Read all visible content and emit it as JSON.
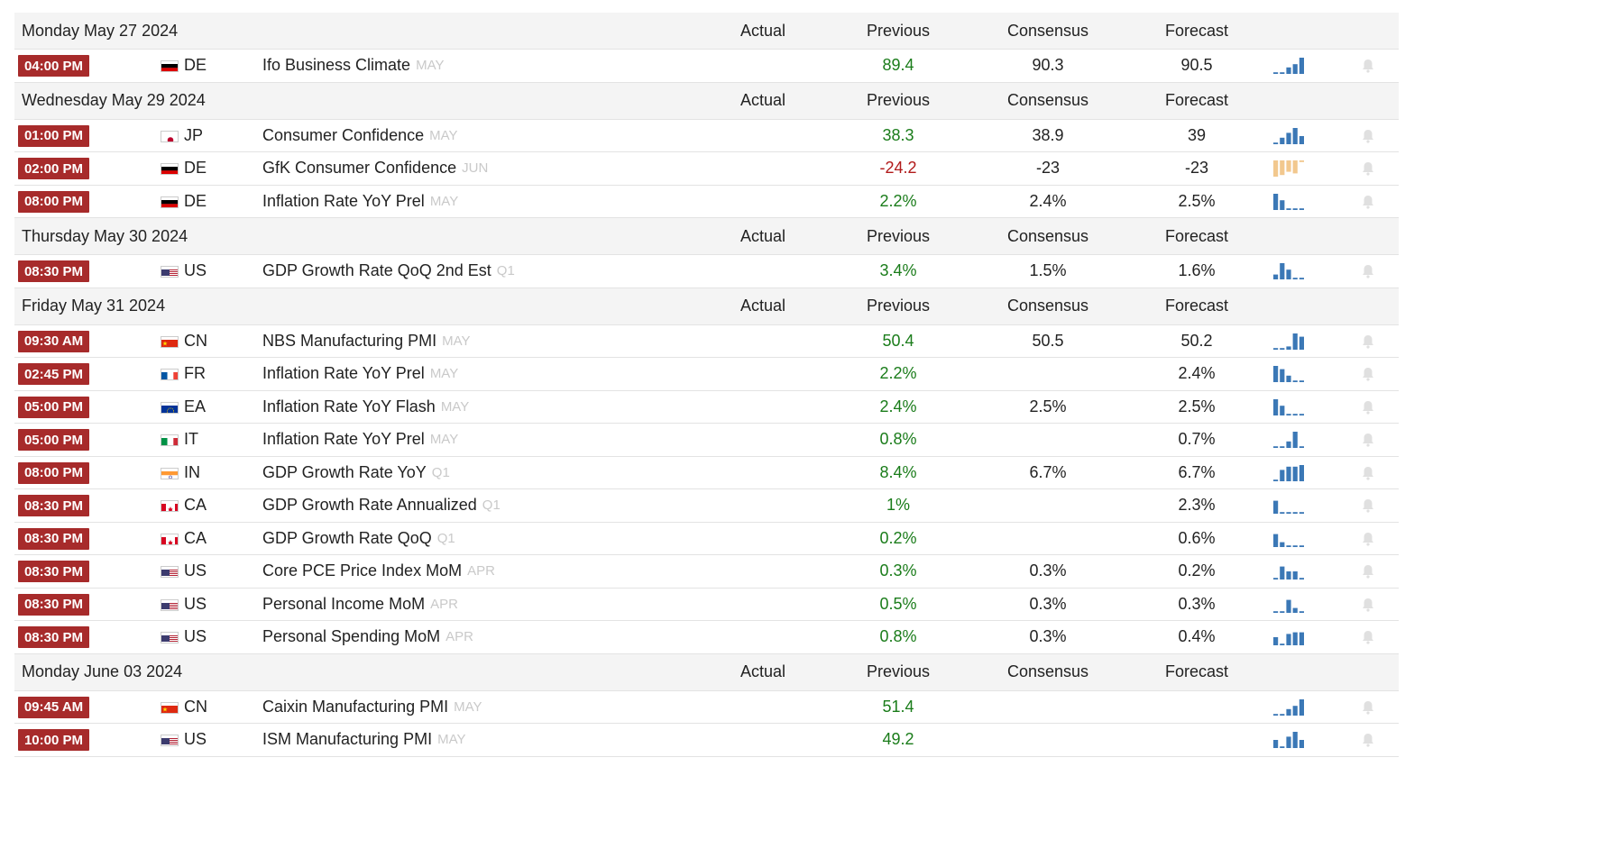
{
  "columns": {
    "actual": "Actual",
    "previous": "Previous",
    "consensus": "Consensus",
    "forecast": "Forecast"
  },
  "colors": {
    "time_badge": "#a72b2b",
    "positive": "#1a7c1a",
    "negative": "#b11a1a",
    "spark_blue": "#3b78b6",
    "spark_orange": "#f2c88e",
    "reference": "#c9c9c9"
  },
  "days": [
    {
      "date": "Monday May 27 2024",
      "events": [
        {
          "time": "04:00 PM",
          "country": "DE",
          "flag": "de",
          "name": "Ifo Business Climate",
          "ref": "MAY",
          "actual": "",
          "previous": "89.4",
          "prev_sign": "pos",
          "consensus": "90.3",
          "forecast": "90.5",
          "spark": [
            0.1,
            0.1,
            0.4,
            0.6,
            1.0
          ],
          "spark_color": "blue",
          "spark_icon": "sparkline-chart-icon",
          "bell_icon": "bell-icon"
        }
      ]
    },
    {
      "date": "Wednesday May 29 2024",
      "events": [
        {
          "time": "01:00 PM",
          "country": "JP",
          "flag": "jp",
          "name": "Consumer Confidence",
          "ref": "MAY",
          "actual": "",
          "previous": "38.3",
          "prev_sign": "pos",
          "consensus": "38.9",
          "forecast": "39",
          "spark": [
            0.1,
            0.4,
            0.7,
            1.0,
            0.5
          ],
          "spark_color": "blue",
          "spark_icon": "sparkline-chart-icon",
          "bell_icon": "bell-icon"
        },
        {
          "time": "02:00 PM",
          "country": "DE",
          "flag": "de",
          "name": "GfK Consumer Confidence",
          "ref": "JUN",
          "actual": "",
          "previous": "-24.2",
          "prev_sign": "neg",
          "consensus": "-23",
          "forecast": "-23",
          "spark": [
            1.0,
            0.9,
            0.7,
            0.8,
            0.1
          ],
          "spark_color": "orange",
          "spark_icon": "sparkline-chart-icon",
          "bell_icon": "bell-icon"
        },
        {
          "time": "08:00 PM",
          "country": "DE",
          "flag": "de",
          "name": "Inflation Rate YoY Prel",
          "ref": "MAY",
          "actual": "",
          "previous": "2.2%",
          "prev_sign": "pos",
          "consensus": "2.4%",
          "forecast": "2.5%",
          "spark": [
            1.0,
            0.6,
            0.1,
            0.1,
            0.1
          ],
          "spark_color": "blue",
          "spark_icon": "sparkline-chart-icon",
          "bell_icon": "bell-icon"
        }
      ]
    },
    {
      "date": "Thursday May 30 2024",
      "events": [
        {
          "time": "08:30 PM",
          "country": "US",
          "flag": "us",
          "name": "GDP Growth Rate QoQ 2nd Est",
          "ref": "Q1",
          "actual": "",
          "previous": "3.4%",
          "prev_sign": "pos",
          "consensus": "1.5%",
          "forecast": "1.6%",
          "spark": [
            0.3,
            1.0,
            0.6,
            0.1,
            0.1
          ],
          "spark_color": "blue",
          "spark_icon": "sparkline-chart-icon",
          "bell_icon": "bell-icon"
        }
      ]
    },
    {
      "date": "Friday May 31 2024",
      "events": [
        {
          "time": "09:30 AM",
          "country": "CN",
          "flag": "cn",
          "name": "NBS Manufacturing PMI",
          "ref": "MAY",
          "actual": "",
          "previous": "50.4",
          "prev_sign": "pos",
          "consensus": "50.5",
          "forecast": "50.2",
          "spark": [
            0.1,
            0.1,
            0.2,
            1.0,
            0.8
          ],
          "spark_color": "blue",
          "spark_icon": "sparkline-chart-icon",
          "bell_icon": "bell-icon"
        },
        {
          "time": "02:45 PM",
          "country": "FR",
          "flag": "fr",
          "name": "Inflation Rate YoY Prel",
          "ref": "MAY",
          "actual": "",
          "previous": "2.2%",
          "prev_sign": "pos",
          "consensus": "",
          "forecast": "2.4%",
          "spark": [
            1.0,
            0.8,
            0.4,
            0.1,
            0.1
          ],
          "spark_color": "blue",
          "spark_icon": "sparkline-chart-icon",
          "bell_icon": "bell-icon"
        },
        {
          "time": "05:00 PM",
          "country": "EA",
          "flag": "eu",
          "name": "Inflation Rate YoY Flash",
          "ref": "MAY",
          "actual": "",
          "previous": "2.4%",
          "prev_sign": "pos",
          "consensus": "2.5%",
          "forecast": "2.5%",
          "spark": [
            1.0,
            0.6,
            0.1,
            0.1,
            0.1
          ],
          "spark_color": "blue",
          "spark_icon": "sparkline-chart-icon",
          "bell_icon": "bell-icon"
        },
        {
          "time": "05:00 PM",
          "country": "IT",
          "flag": "it",
          "name": "Inflation Rate YoY Prel",
          "ref": "MAY",
          "actual": "",
          "previous": "0.8%",
          "prev_sign": "pos",
          "consensus": "",
          "forecast": "0.7%",
          "spark": [
            0.1,
            0.1,
            0.4,
            1.0,
            0.1
          ],
          "spark_color": "blue",
          "spark_icon": "sparkline-chart-icon",
          "bell_icon": "bell-icon"
        },
        {
          "time": "08:00 PM",
          "country": "IN",
          "flag": "in",
          "name": "GDP Growth Rate YoY",
          "ref": "Q1",
          "actual": "",
          "previous": "8.4%",
          "prev_sign": "pos",
          "consensus": "6.7%",
          "forecast": "6.7%",
          "spark": [
            0.1,
            0.7,
            0.9,
            0.9,
            1.0
          ],
          "spark_color": "blue",
          "spark_icon": "sparkline-chart-icon",
          "bell_icon": "bell-icon"
        },
        {
          "time": "08:30 PM",
          "country": "CA",
          "flag": "ca",
          "name": "GDP Growth Rate Annualized",
          "ref": "Q1",
          "actual": "",
          "previous": "1%",
          "prev_sign": "pos",
          "consensus": "",
          "forecast": "2.3%",
          "spark": [
            0.8,
            0.1,
            0.1,
            0.1,
            0.1
          ],
          "spark_color": "blue",
          "spark_icon": "sparkline-chart-icon",
          "bell_icon": "bell-icon"
        },
        {
          "time": "08:30 PM",
          "country": "CA",
          "flag": "ca",
          "name": "GDP Growth Rate QoQ",
          "ref": "Q1",
          "actual": "",
          "previous": "0.2%",
          "prev_sign": "pos",
          "consensus": "",
          "forecast": "0.6%",
          "spark": [
            0.8,
            0.3,
            0.1,
            0.1,
            0.1
          ],
          "spark_color": "blue",
          "spark_icon": "sparkline-chart-icon",
          "bell_icon": "bell-icon"
        },
        {
          "time": "08:30 PM",
          "country": "US",
          "flag": "us",
          "name": "Core PCE Price Index MoM",
          "ref": "APR",
          "actual": "",
          "previous": "0.3%",
          "prev_sign": "pos",
          "consensus": "0.3%",
          "forecast": "0.2%",
          "spark": [
            0.1,
            0.8,
            0.5,
            0.5,
            0.1
          ],
          "spark_color": "blue",
          "spark_icon": "sparkline-chart-icon",
          "bell_icon": "bell-icon"
        },
        {
          "time": "08:30 PM",
          "country": "US",
          "flag": "us",
          "name": "Personal Income MoM",
          "ref": "APR",
          "actual": "",
          "previous": "0.5%",
          "prev_sign": "pos",
          "consensus": "0.3%",
          "forecast": "0.3%",
          "spark": [
            0.1,
            0.1,
            0.8,
            0.3,
            0.1
          ],
          "spark_color": "blue",
          "spark_icon": "sparkline-chart-icon",
          "bell_icon": "bell-icon"
        },
        {
          "time": "08:30 PM",
          "country": "US",
          "flag": "us",
          "name": "Personal Spending MoM",
          "ref": "APR",
          "actual": "",
          "previous": "0.8%",
          "prev_sign": "pos",
          "consensus": "0.3%",
          "forecast": "0.4%",
          "spark": [
            0.5,
            0.1,
            0.7,
            0.8,
            0.8
          ],
          "spark_color": "blue",
          "spark_icon": "sparkline-chart-icon",
          "bell_icon": "bell-icon"
        }
      ]
    },
    {
      "date": "Monday June 03 2024",
      "events": [
        {
          "time": "09:45 AM",
          "country": "CN",
          "flag": "cn",
          "name": "Caixin Manufacturing PMI",
          "ref": "MAY",
          "actual": "",
          "previous": "51.4",
          "prev_sign": "pos",
          "consensus": "",
          "forecast": "",
          "spark": [
            0.1,
            0.1,
            0.4,
            0.6,
            1.0
          ],
          "spark_color": "blue",
          "spark_icon": "sparkline-chart-icon",
          "bell_icon": "bell-icon"
        },
        {
          "time": "10:00 PM",
          "country": "US",
          "flag": "us",
          "name": "ISM Manufacturing PMI",
          "ref": "MAY",
          "actual": "",
          "previous": "49.2",
          "prev_sign": "pos",
          "consensus": "",
          "forecast": "",
          "spark": [
            0.5,
            0.1,
            0.7,
            1.0,
            0.5
          ],
          "spark_color": "blue",
          "spark_icon": "sparkline-chart-icon",
          "bell_icon": "bell-icon"
        }
      ]
    }
  ]
}
